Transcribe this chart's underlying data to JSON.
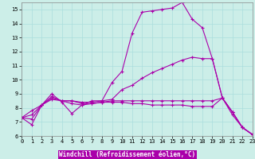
{
  "bg_color": "#cceee8",
  "line_color": "#aa00aa",
  "grid_color": "#aadddd",
  "lines": [
    {
      "x": [
        0,
        1,
        2,
        3,
        4,
        5,
        6,
        7,
        8,
        9,
        10,
        11,
        12,
        13,
        14,
        15,
        16,
        17,
        18,
        19,
        20,
        21,
        22,
        23
      ],
      "y": [
        7.3,
        6.8,
        8.2,
        9.0,
        8.4,
        7.6,
        8.2,
        8.5,
        8.5,
        9.8,
        10.6,
        13.3,
        14.8,
        14.9,
        15.0,
        15.1,
        15.5,
        14.3,
        13.7,
        11.5,
        8.7,
        7.5,
        6.6,
        6.1
      ]
    },
    {
      "x": [
        0,
        1,
        2,
        3,
        4,
        5,
        6,
        7,
        8,
        9,
        10,
        11,
        12,
        13,
        14,
        15,
        16,
        17,
        18,
        19,
        20,
        21,
        22,
        23
      ],
      "y": [
        7.3,
        7.2,
        8.2,
        8.7,
        8.5,
        8.5,
        8.4,
        8.4,
        8.5,
        8.6,
        9.3,
        9.6,
        10.1,
        10.5,
        10.8,
        11.1,
        11.4,
        11.6,
        11.5,
        11.5,
        8.7,
        7.7,
        6.6,
        6.1
      ]
    },
    {
      "x": [
        0,
        1,
        2,
        3,
        4,
        5,
        6,
        7,
        8,
        9,
        10,
        11,
        12,
        13,
        14,
        15,
        16,
        17,
        18,
        19,
        20,
        21,
        22,
        23
      ],
      "y": [
        7.3,
        7.5,
        8.2,
        8.8,
        8.5,
        8.5,
        8.3,
        8.3,
        8.4,
        8.5,
        8.5,
        8.5,
        8.5,
        8.5,
        8.5,
        8.5,
        8.5,
        8.5,
        8.5,
        8.5,
        8.7,
        7.7,
        6.6,
        6.1
      ]
    },
    {
      "x": [
        0,
        1,
        2,
        3,
        4,
        5,
        6,
        7,
        8,
        9,
        10,
        11,
        12,
        13,
        14,
        15,
        16,
        17,
        18,
        19,
        20,
        21,
        22,
        23
      ],
      "y": [
        7.3,
        7.8,
        8.2,
        8.6,
        8.5,
        8.3,
        8.2,
        8.3,
        8.4,
        8.4,
        8.4,
        8.3,
        8.3,
        8.2,
        8.2,
        8.2,
        8.2,
        8.1,
        8.1,
        8.1,
        8.7,
        7.7,
        6.6,
        6.1
      ]
    }
  ],
  "xlim": [
    0,
    23
  ],
  "ylim": [
    6,
    15.5
  ],
  "yticks": [
    6,
    7,
    8,
    9,
    10,
    11,
    12,
    13,
    14,
    15
  ],
  "xticks": [
    0,
    1,
    2,
    3,
    4,
    5,
    6,
    7,
    8,
    9,
    10,
    11,
    12,
    13,
    14,
    15,
    16,
    17,
    18,
    19,
    20,
    21,
    22,
    23
  ],
  "xlabel": "Windchill (Refroidissement éolien,°C)",
  "marker": "+",
  "markersize": 3,
  "linewidth": 0.8,
  "tick_fontsize": 5.0,
  "label_fontsize": 5.5
}
